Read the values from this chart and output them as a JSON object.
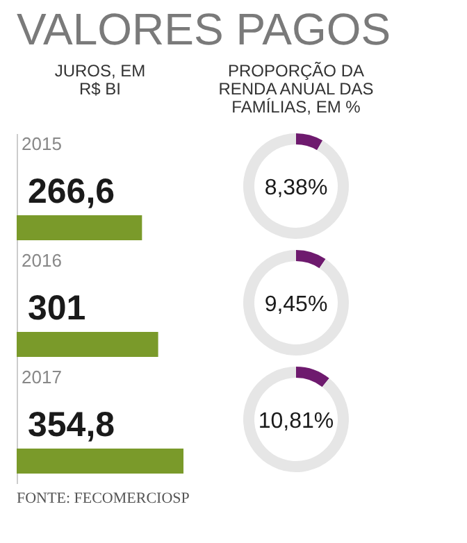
{
  "chart_data": [
    {
      "type": "bar",
      "orientation": "horizontal",
      "title": "VALORES PAGOS",
      "xlabel": "JUROS, EM R$ BI",
      "categories": [
        "2015",
        "2016",
        "2017"
      ],
      "values": [
        266.6,
        301,
        354.8
      ],
      "value_labels": [
        "266,6",
        "301",
        "354,8"
      ],
      "color": "#7a9a2a",
      "tick_labels": "y",
      "annotations": [
        "FONTE: FECOMERCIOSP"
      ]
    },
    {
      "type": "donut",
      "title": "PROPORÇÃO DA RENDA ANUAL DAS FAMÍLIAS, EM %",
      "categories": [
        null,
        null
      ],
      "values": [
        8.38,
        91.62
      ],
      "annotations": [
        "8,38%"
      ],
      "colors": [
        "#6e1a6e",
        "#e6e6e6"
      ]
    },
    {
      "type": "donut",
      "categories": [
        null,
        null
      ],
      "values": [
        9.45,
        90.55
      ],
      "annotations": [
        "9,45%"
      ],
      "colors": [
        "#6e1a6e",
        "#e6e6e6"
      ]
    },
    {
      "type": "donut",
      "categories": [
        null,
        null
      ],
      "values": [
        10.81,
        89.19
      ],
      "annotations": [
        "10,81%"
      ],
      "colors": [
        "#6e1a6e",
        "#e6e6e6"
      ]
    }
  ]
}
